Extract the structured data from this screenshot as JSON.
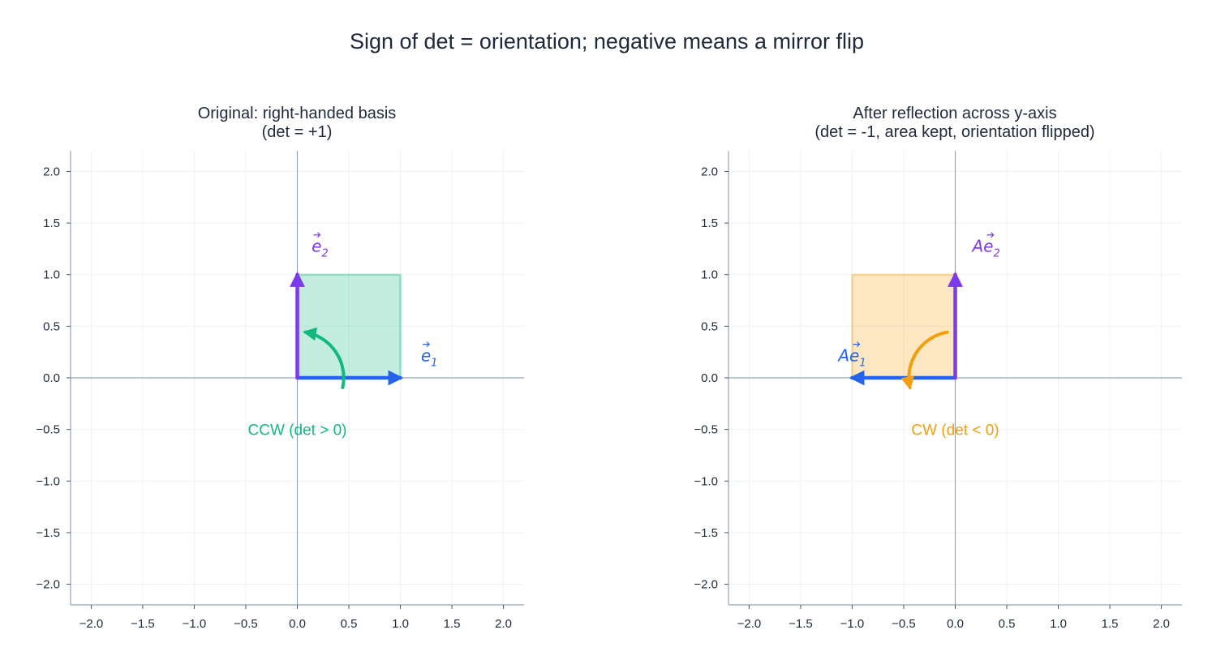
{
  "figure": {
    "title": "Sign of det = orientation; negative means a mirror flip"
  },
  "colors": {
    "e1": "#2563eb",
    "e2": "#7c3aed",
    "ccw": "#10b981",
    "cw": "#f59e0b",
    "axis": "#94a3b8",
    "grid": "#eef2f7",
    "text": "#1e293b"
  },
  "chart_data": [
    {
      "type": "diagram",
      "title_line1": "Original: right-handed basis",
      "title_line2": "(det = +1)",
      "xlim": [
        -2.2,
        2.2
      ],
      "ylim": [
        -2.2,
        2.2
      ],
      "ticks": [
        -2.0,
        -1.5,
        -1.0,
        -0.5,
        0.0,
        0.5,
        1.0,
        1.5,
        2.0
      ],
      "tick_labels": [
        "−2.0",
        "−1.5",
        "−1.0",
        "−0.5",
        "0.0",
        "0.5",
        "1.0",
        "1.5",
        "2.0"
      ],
      "grid": true,
      "square": [
        [
          0,
          0
        ],
        [
          1,
          0
        ],
        [
          1,
          1
        ],
        [
          0,
          1
        ]
      ],
      "vectors": [
        {
          "name": "e1",
          "base": "e",
          "subscript": "1",
          "from": [
            0,
            0
          ],
          "to": [
            1,
            0
          ],
          "label_at": [
            1.28,
            0.16
          ]
        },
        {
          "name": "e2",
          "base": "e",
          "subscript": "2",
          "from": [
            0,
            0
          ],
          "to": [
            0,
            1
          ],
          "label_at": [
            0.22,
            1.22
          ]
        }
      ],
      "rotation_arrow": {
        "direction": "ccw",
        "center": [
          0,
          0
        ],
        "radius": 0.45,
        "start_deg": 0,
        "end_deg": 80,
        "tail_angle_deg": -13
      },
      "rotation_label": "CCW (det > 0)",
      "rotation_label_at": [
        0,
        -0.5
      ]
    },
    {
      "type": "diagram",
      "title_line1": "After reflection across y-axis",
      "title_line2": "(det = -1, area kept, orientation flipped)",
      "xlim": [
        -2.2,
        2.2
      ],
      "ylim": [
        -2.2,
        2.2
      ],
      "ticks": [
        -2.0,
        -1.5,
        -1.0,
        -0.5,
        0.0,
        0.5,
        1.0,
        1.5,
        2.0
      ],
      "tick_labels": [
        "−2.0",
        "−1.5",
        "−1.0",
        "−0.5",
        "0.0",
        "0.5",
        "1.0",
        "1.5",
        "2.0"
      ],
      "grid": true,
      "square": [
        [
          0,
          0
        ],
        [
          -1,
          0
        ],
        [
          -1,
          1
        ],
        [
          0,
          1
        ]
      ],
      "vectors": [
        {
          "name": "e1",
          "base": "Ae",
          "subscript": "1",
          "from": [
            0,
            0
          ],
          "to": [
            -1,
            0
          ],
          "label_at": [
            -1.0,
            0.16
          ]
        },
        {
          "name": "e2",
          "base": "Ae",
          "subscript": "2",
          "from": [
            0,
            0
          ],
          "to": [
            0,
            1
          ],
          "label_at": [
            0.3,
            1.22
          ]
        }
      ],
      "rotation_arrow": {
        "direction": "cw",
        "center": [
          0,
          0
        ],
        "radius": 0.45,
        "start_deg": 80,
        "end_deg": 0,
        "mirror": true
      },
      "rotation_label": "CW (det < 0)",
      "rotation_label_at": [
        0,
        -0.5
      ]
    }
  ]
}
